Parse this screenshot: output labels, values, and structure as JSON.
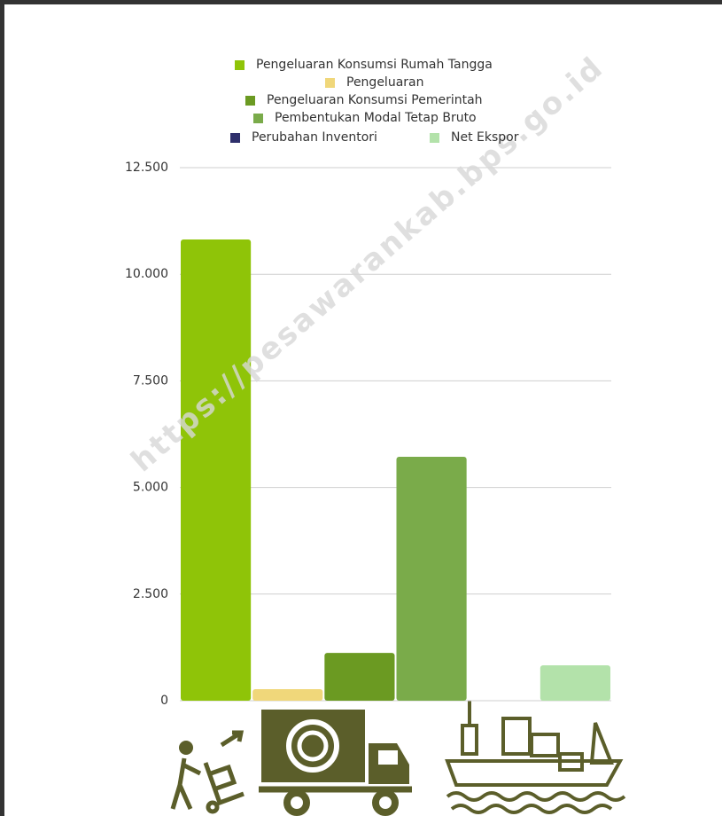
{
  "watermark": "https://pesawarankab.bps.go.id",
  "chart_data": {
    "type": "bar",
    "categories": [
      null
    ],
    "series": [
      {
        "name": "Pengeluaran Konsumsi Rumah Tangga",
        "color": "#8fc408",
        "values": [
          10815
        ]
      },
      {
        "name": "Pengeluaran",
        "color": "#f0d77a",
        "values": [
          270
        ]
      },
      {
        "name": "Pengeluaran Konsumsi Pemerintah",
        "color": "#6b9a22",
        "values": [
          1120
        ]
      },
      {
        "name": "Pembentukan Modal Tetap Bruto",
        "color": "#7aab4a",
        "values": [
          5720
        ]
      },
      {
        "name": "Perubahan Inventori",
        "color": "#2e2f6b",
        "values": [
          0
        ]
      },
      {
        "name": "Net Ekspor",
        "color": "#b3e2aa",
        "values": [
          830
        ]
      }
    ],
    "ylim": [
      0,
      12500
    ],
    "yticks": [
      0,
      {
        "value": 2500,
        "label": "2.500"
      },
      {
        "value": 5000,
        "label": "5.000"
      },
      {
        "value": 7500,
        "label": "7.500"
      },
      {
        "value": 10000,
        "label": "10.000"
      },
      {
        "value": 12500,
        "label": "12.500"
      }
    ],
    "grid": true
  }
}
